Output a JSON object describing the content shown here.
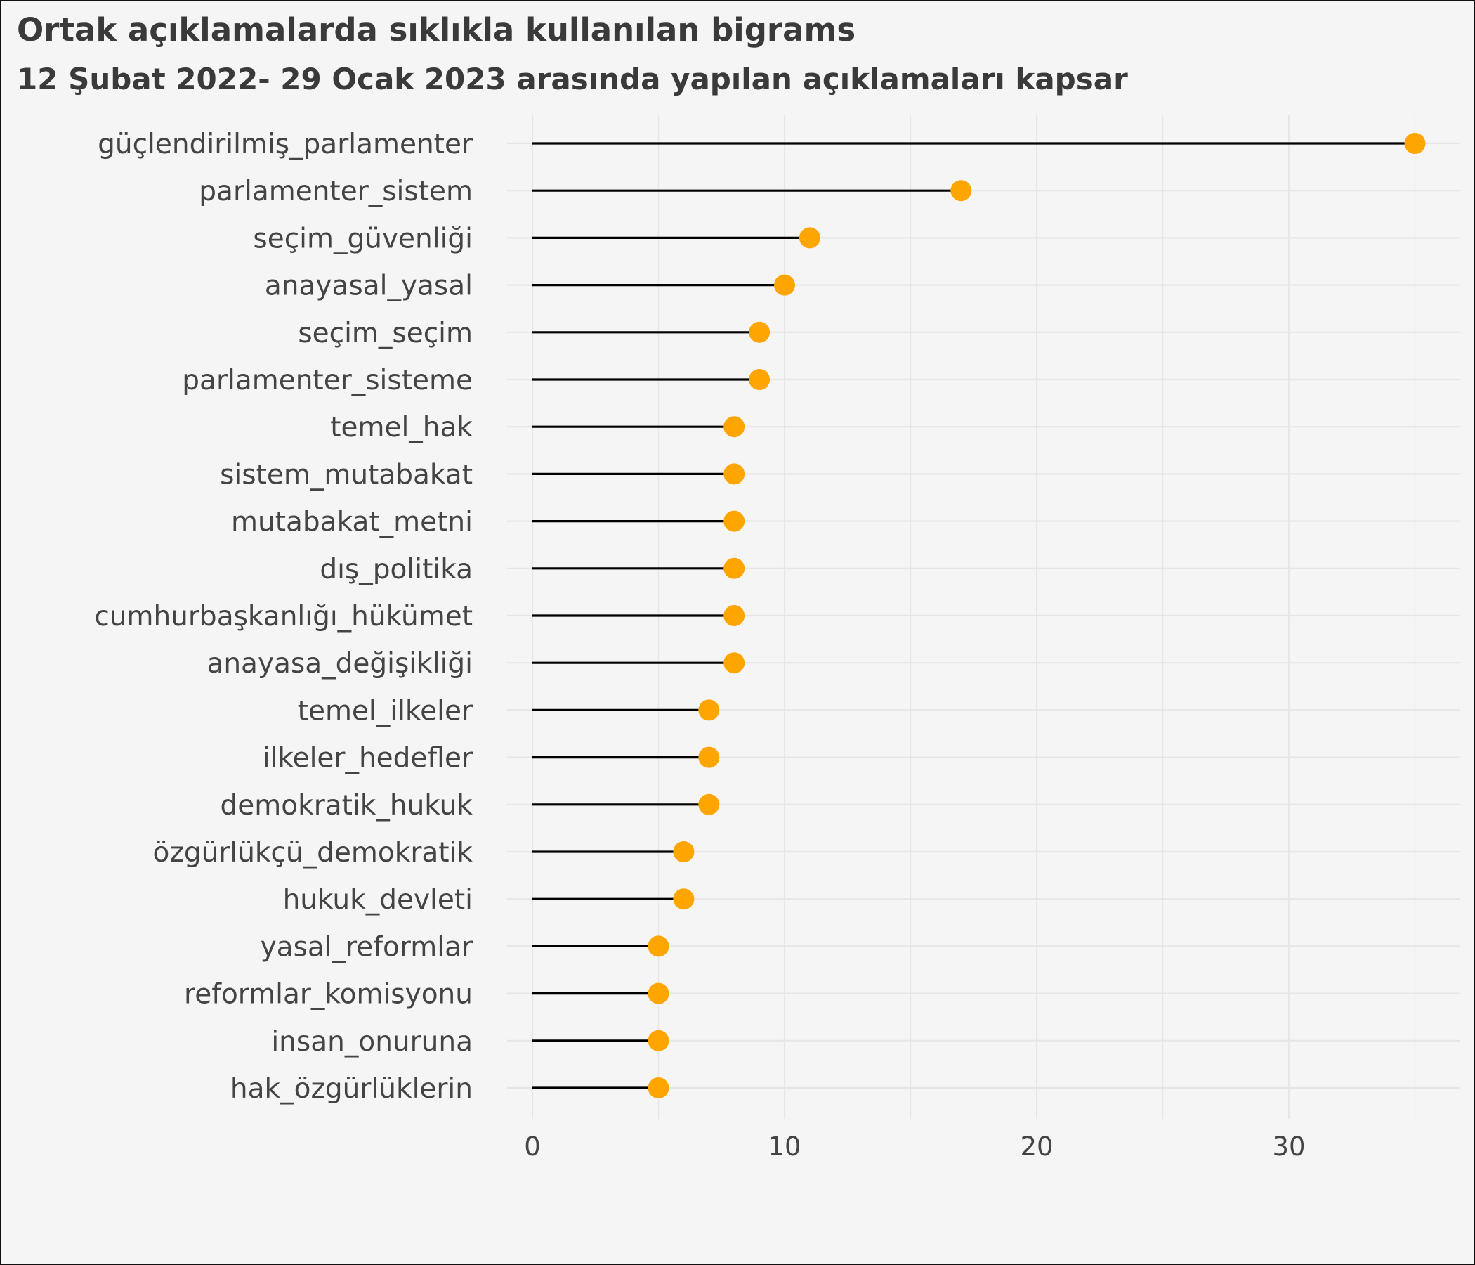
{
  "chart_data": {
    "type": "lollipop",
    "title": "Ortak açıklamalarda sıklıkla kullanılan bigrams",
    "subtitle": "12 Şubat 2022- 29 Ocak 2023 arasında yapılan açıklamaları kapsar",
    "xlabel": "",
    "ylabel": "",
    "xlim": [
      0,
      36
    ],
    "x_ticks": [
      0,
      10,
      20,
      30
    ],
    "grid": true,
    "legend": "none",
    "colors": {
      "point": "#ffa500",
      "stem": "#000000",
      "grid": "#e6e6e6",
      "background": "#f5f5f5"
    },
    "categories": [
      "güçlendirilmiş_parlamenter",
      "parlamenter_sistem",
      "seçim_güvenliği",
      "anayasal_yasal",
      "seçim_seçim",
      "parlamenter_sisteme",
      "temel_hak",
      "sistem_mutabakat",
      "mutabakat_metni",
      "dış_politika",
      "cumhurbaşkanlığı_hükümet",
      "anayasa_değişikliği",
      "temel_ilkeler",
      "ilkeler_hedefler",
      "demokratik_hukuk",
      "özgürlükçü_demokratik",
      "hukuk_devleti",
      "yasal_reformlar",
      "reformlar_komisyonu",
      "insan_onuruna",
      "hak_özgürlüklerin"
    ],
    "values": [
      35,
      17,
      11,
      10,
      9,
      9,
      8,
      8,
      8,
      8,
      8,
      8,
      7,
      7,
      7,
      6,
      6,
      5,
      5,
      5,
      5
    ]
  }
}
